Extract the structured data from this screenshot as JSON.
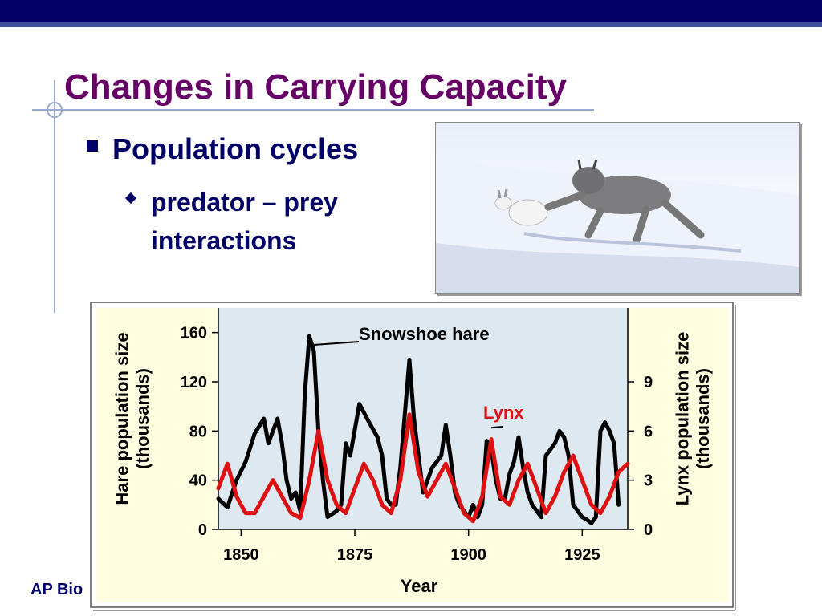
{
  "slide": {
    "title": "Changes in Carrying Capacity",
    "bullet1": "Population cycles",
    "bullet2_line1": "predator – prey",
    "bullet2_line2": "interactions",
    "footer": "AP Bio"
  },
  "colors": {
    "title": "#660066",
    "text": "#000066",
    "topbar": "#000066",
    "hare": "#000000",
    "lynx": "#dd1111",
    "plot_bg": "#dde8f0",
    "panel_bg": "#fffde0"
  },
  "chart_data": {
    "type": "line",
    "xlabel": "Year",
    "ylabel_left": "Hare population size (thousands)",
    "ylabel_right": "Lynx population size (thousands)",
    "xlim": [
      1845,
      1935
    ],
    "ylim_left": [
      0,
      180
    ],
    "ylim_right": [
      0,
      13.5
    ],
    "x_ticks": [
      1850,
      1875,
      1900,
      1925
    ],
    "y_ticks_left": [
      0,
      40,
      80,
      120,
      160
    ],
    "y_ticks_right": [
      0,
      3,
      6,
      9
    ],
    "series": [
      {
        "name": "Snowshoe hare",
        "axis": "left",
        "points": [
          [
            1845,
            25
          ],
          [
            1847,
            18
          ],
          [
            1849,
            40
          ],
          [
            1851,
            55
          ],
          [
            1853,
            78
          ],
          [
            1855,
            90
          ],
          [
            1856,
            70
          ],
          [
            1857,
            80
          ],
          [
            1858,
            90
          ],
          [
            1859,
            70
          ],
          [
            1860,
            40
          ],
          [
            1861,
            25
          ],
          [
            1862,
            30
          ],
          [
            1863,
            15
          ],
          [
            1864,
            110
          ],
          [
            1865,
            157
          ],
          [
            1866,
            145
          ],
          [
            1867,
            80
          ],
          [
            1868,
            40
          ],
          [
            1869,
            10
          ],
          [
            1871,
            15
          ],
          [
            1872,
            20
          ],
          [
            1873,
            70
          ],
          [
            1874,
            60
          ],
          [
            1876,
            102
          ],
          [
            1878,
            88
          ],
          [
            1880,
            75
          ],
          [
            1881,
            60
          ],
          [
            1882,
            25
          ],
          [
            1883,
            20
          ],
          [
            1884,
            20
          ],
          [
            1885,
            50
          ],
          [
            1887,
            138
          ],
          [
            1888,
            90
          ],
          [
            1890,
            30
          ],
          [
            1892,
            50
          ],
          [
            1893,
            55
          ],
          [
            1894,
            60
          ],
          [
            1895,
            85
          ],
          [
            1896,
            60
          ],
          [
            1897,
            30
          ],
          [
            1898,
            20
          ],
          [
            1899,
            15
          ],
          [
            1900,
            10
          ],
          [
            1901,
            20
          ],
          [
            1902,
            10
          ],
          [
            1903,
            20
          ],
          [
            1904,
            72
          ],
          [
            1905,
            65
          ],
          [
            1906,
            40
          ],
          [
            1907,
            25
          ],
          [
            1908,
            25
          ],
          [
            1909,
            45
          ],
          [
            1910,
            55
          ],
          [
            1911,
            75
          ],
          [
            1912,
            50
          ],
          [
            1913,
            30
          ],
          [
            1914,
            20
          ],
          [
            1915,
            15
          ],
          [
            1916,
            10
          ],
          [
            1917,
            60
          ],
          [
            1918,
            65
          ],
          [
            1919,
            70
          ],
          [
            1920,
            80
          ],
          [
            1921,
            75
          ],
          [
            1922,
            60
          ],
          [
            1923,
            20
          ],
          [
            1924,
            15
          ],
          [
            1925,
            10
          ],
          [
            1926,
            8
          ],
          [
            1927,
            5
          ],
          [
            1928,
            10
          ],
          [
            1929,
            80
          ],
          [
            1930,
            87
          ],
          [
            1931,
            80
          ],
          [
            1932,
            70
          ],
          [
            1933,
            20
          ]
        ]
      },
      {
        "name": "Lynx",
        "axis": "right",
        "points": [
          [
            1845,
            2.5
          ],
          [
            1847,
            4
          ],
          [
            1849,
            2
          ],
          [
            1851,
            1
          ],
          [
            1853,
            1
          ],
          [
            1855,
            2
          ],
          [
            1857,
            3
          ],
          [
            1859,
            2
          ],
          [
            1861,
            1
          ],
          [
            1863,
            0.7
          ],
          [
            1865,
            3
          ],
          [
            1867,
            6
          ],
          [
            1869,
            3
          ],
          [
            1871,
            1.5
          ],
          [
            1873,
            1
          ],
          [
            1875,
            2.5
          ],
          [
            1877,
            4
          ],
          [
            1879,
            3
          ],
          [
            1881,
            1.5
          ],
          [
            1883,
            1
          ],
          [
            1885,
            3
          ],
          [
            1887,
            7
          ],
          [
            1889,
            3.5
          ],
          [
            1891,
            2
          ],
          [
            1893,
            3
          ],
          [
            1895,
            4
          ],
          [
            1897,
            2.5
          ],
          [
            1899,
            1
          ],
          [
            1901,
            0.5
          ],
          [
            1903,
            2
          ],
          [
            1905,
            5.5
          ],
          [
            1907,
            2
          ],
          [
            1909,
            1.5
          ],
          [
            1911,
            3
          ],
          [
            1913,
            4
          ],
          [
            1915,
            2.5
          ],
          [
            1917,
            1
          ],
          [
            1919,
            2
          ],
          [
            1921,
            3.5
          ],
          [
            1923,
            4.5
          ],
          [
            1925,
            3
          ],
          [
            1927,
            1.5
          ],
          [
            1929,
            1
          ],
          [
            1931,
            2
          ],
          [
            1933,
            3.5
          ],
          [
            1935,
            4
          ]
        ]
      }
    ],
    "annotations": [
      "Snowshoe hare",
      "Lynx"
    ]
  }
}
